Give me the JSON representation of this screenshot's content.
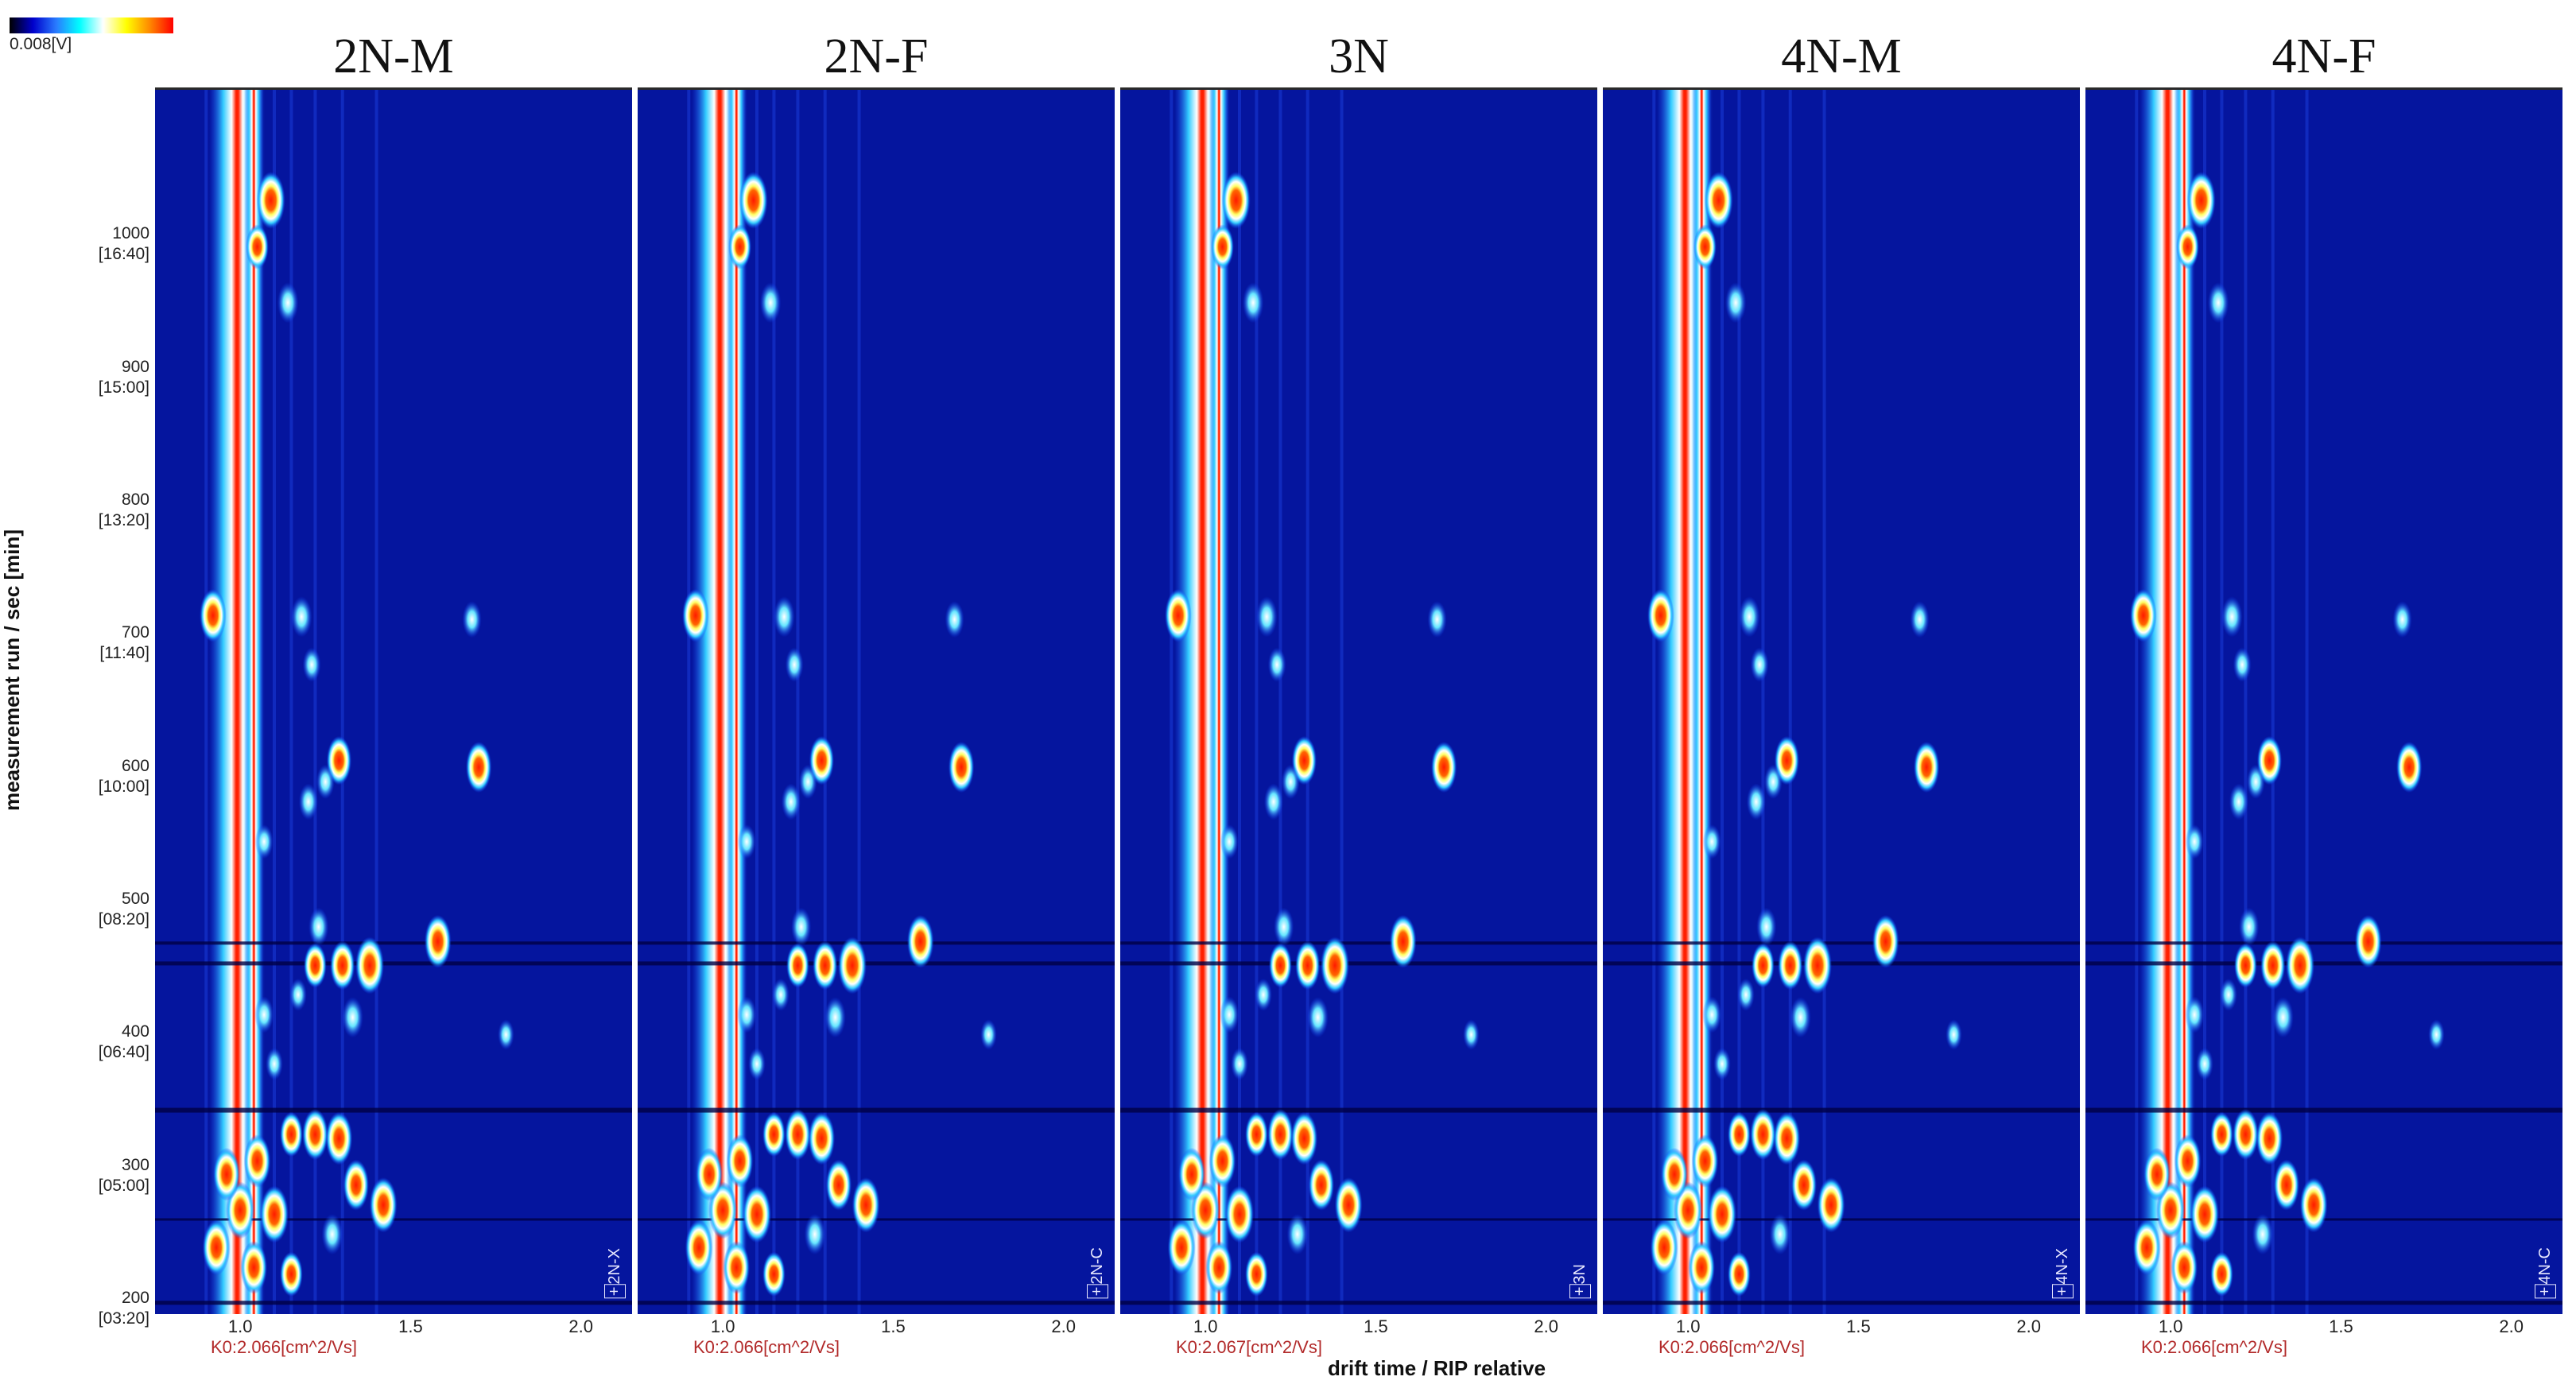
{
  "colorbar": {
    "label": "0.008[V]",
    "stops": [
      "#000000",
      "#0000cc",
      "#2a7cff",
      "#00ffff",
      "#ffffff",
      "#ffff00",
      "#ff8800",
      "#ff0000"
    ]
  },
  "chart_data": {
    "type": "heatmap",
    "xlabel": "drift time / RIP relative",
    "ylabel": "measurement run / sec [min]",
    "xlim": [
      0.75,
      2.15
    ],
    "ylim": [
      190,
      1110
    ],
    "x_ticks": [
      "1.0",
      "1.5",
      "2.0"
    ],
    "y_ticks": [
      {
        "value": 200,
        "label": "200",
        "sublabel": "[03:20]"
      },
      {
        "value": 300,
        "label": "300",
        "sublabel": "[05:00]"
      },
      {
        "value": 400,
        "label": "400",
        "sublabel": "[06:40]"
      },
      {
        "value": 500,
        "label": "500",
        "sublabel": "[08:20]"
      },
      {
        "value": 600,
        "label": "600",
        "sublabel": "[10:00]"
      },
      {
        "value": 700,
        "label": "700",
        "sublabel": "[11:40]"
      },
      {
        "value": 800,
        "label": "800",
        "sublabel": "[13:20]"
      },
      {
        "value": 900,
        "label": "900",
        "sublabel": "[15:00]"
      },
      {
        "value": 1000,
        "label": "1000",
        "sublabel": "[16:40]"
      }
    ],
    "panels": [
      {
        "title": "2N-M",
        "sample": "2N-X",
        "k0": "K0:2.066[cm^2/Vs]"
      },
      {
        "title": "2N-F",
        "sample": "2N-C",
        "k0": "K0:2.066[cm^2/Vs]"
      },
      {
        "title": "3N",
        "sample": "3N",
        "k0": "K0:2.067[cm^2/Vs]"
      },
      {
        "title": "4N-M",
        "sample": "4N-X",
        "k0": "K0:2.066[cm^2/Vs]"
      },
      {
        "title": "4N-F",
        "sample": "4N-C",
        "k0": "K0:2.066[cm^2/Vs]"
      }
    ],
    "rip_x": 0.97,
    "peaks": [
      {
        "x": 1.09,
        "y": 1027,
        "i": 1.0
      },
      {
        "x": 1.05,
        "y": 992,
        "i": 0.7
      },
      {
        "x": 1.14,
        "y": 950,
        "i": 0.6
      },
      {
        "x": 1.18,
        "y": 714,
        "i": 0.6
      },
      {
        "x": 0.92,
        "y": 715,
        "i": 0.9
      },
      {
        "x": 1.68,
        "y": 712,
        "i": 0.5
      },
      {
        "x": 1.21,
        "y": 678,
        "i": 0.45
      },
      {
        "x": 1.29,
        "y": 606,
        "i": 0.8
      },
      {
        "x": 1.7,
        "y": 601,
        "i": 0.85
      },
      {
        "x": 1.2,
        "y": 575,
        "i": 0.5
      },
      {
        "x": 1.25,
        "y": 590,
        "i": 0.45
      },
      {
        "x": 1.07,
        "y": 545,
        "i": 0.45
      },
      {
        "x": 1.23,
        "y": 481,
        "i": 0.55
      },
      {
        "x": 1.58,
        "y": 470,
        "i": 0.9
      },
      {
        "x": 1.38,
        "y": 452,
        "i": 1.0
      },
      {
        "x": 1.3,
        "y": 452,
        "i": 0.8
      },
      {
        "x": 1.22,
        "y": 452,
        "i": 0.7
      },
      {
        "x": 1.07,
        "y": 415,
        "i": 0.5
      },
      {
        "x": 1.33,
        "y": 413,
        "i": 0.6
      },
      {
        "x": 1.17,
        "y": 430,
        "i": 0.4
      },
      {
        "x": 1.1,
        "y": 378,
        "i": 0.4
      },
      {
        "x": 1.78,
        "y": 400,
        "i": 0.35
      },
      {
        "x": 1.15,
        "y": 325,
        "i": 0.7
      },
      {
        "x": 1.22,
        "y": 325,
        "i": 0.85
      },
      {
        "x": 1.29,
        "y": 322,
        "i": 0.9
      },
      {
        "x": 1.05,
        "y": 305,
        "i": 0.9
      },
      {
        "x": 1.34,
        "y": 287,
        "i": 0.85
      },
      {
        "x": 1.42,
        "y": 272,
        "i": 0.95
      },
      {
        "x": 1.1,
        "y": 265,
        "i": 1.0
      },
      {
        "x": 1.0,
        "y": 268,
        "i": 1.0
      },
      {
        "x": 0.93,
        "y": 240,
        "i": 0.95
      },
      {
        "x": 0.96,
        "y": 295,
        "i": 0.9
      },
      {
        "x": 1.27,
        "y": 250,
        "i": 0.6
      },
      {
        "x": 1.04,
        "y": 225,
        "i": 0.9
      },
      {
        "x": 1.15,
        "y": 220,
        "i": 0.7
      }
    ]
  }
}
